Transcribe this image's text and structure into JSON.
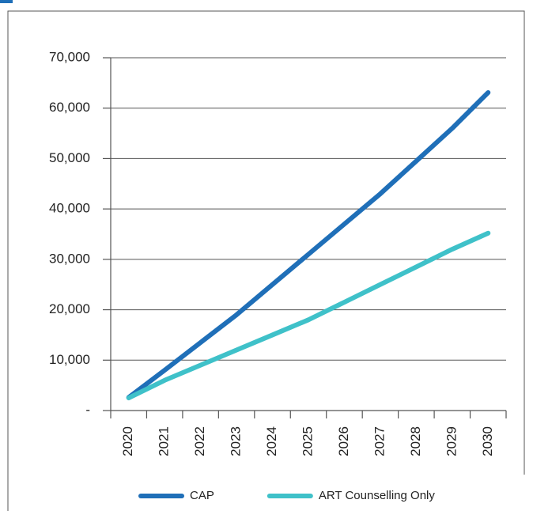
{
  "chart_data": {
    "type": "line",
    "categories": [
      "2020",
      "2021",
      "2022",
      "2023",
      "2024",
      "2025",
      "2026",
      "2027",
      "2028",
      "2029",
      "2030"
    ],
    "series": [
      {
        "name": "CAP",
        "color": "#1f6fb8",
        "values": [
          2600,
          8000,
          13500,
          19000,
          25000,
          31000,
          37000,
          43000,
          49500,
          56000,
          63100
        ]
      },
      {
        "name": "ART Counselling Only",
        "color": "#3fc1c9",
        "values": [
          2500,
          6000,
          9000,
          12000,
          15000,
          18000,
          21500,
          25000,
          28500,
          32000,
          35200
        ]
      }
    ],
    "ylim": [
      0,
      70000
    ],
    "yticks": [
      {
        "value": 0,
        "label": "-"
      },
      {
        "value": 10000,
        "label": "10,000"
      },
      {
        "value": 20000,
        "label": "20,000"
      },
      {
        "value": 30000,
        "label": "30,000"
      },
      {
        "value": 40000,
        "label": "40,000"
      },
      {
        "value": 50000,
        "label": "50,000"
      },
      {
        "value": 60000,
        "label": "60,000"
      },
      {
        "value": 70000,
        "label": "70,000"
      }
    ],
    "grid": true,
    "legend": "bottom"
  }
}
